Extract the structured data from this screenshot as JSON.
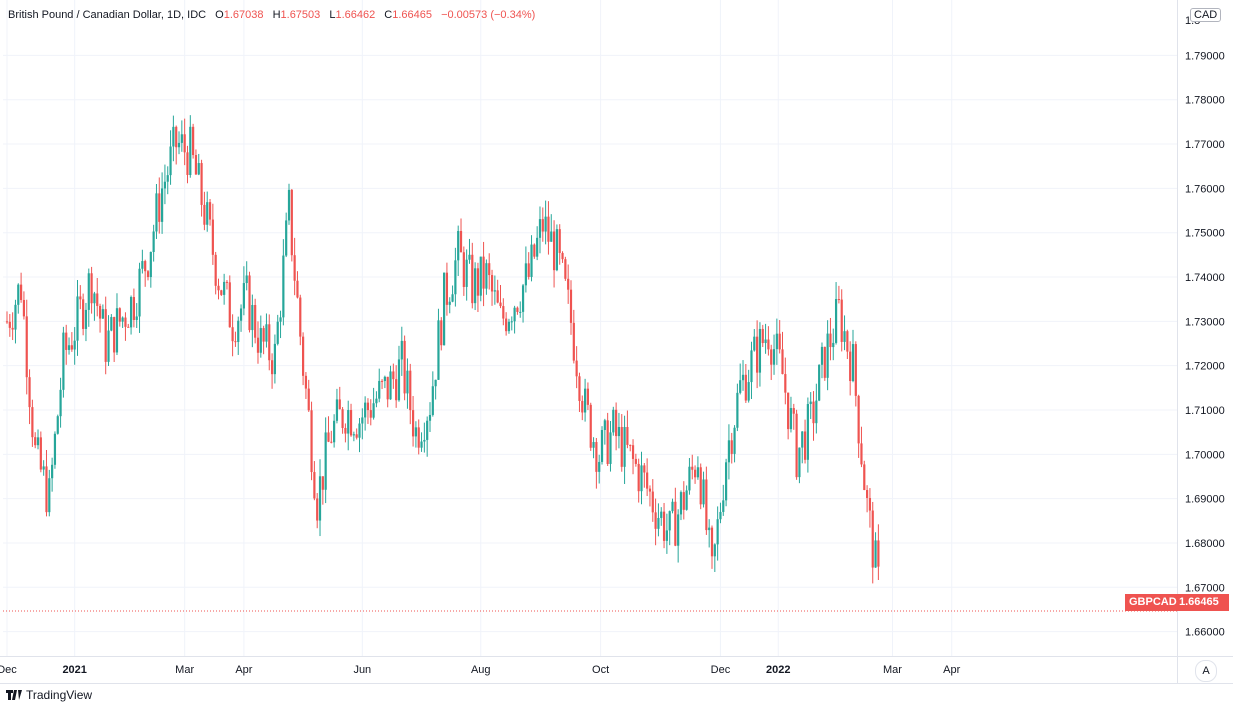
{
  "legend": {
    "symbol": "British Pound / Canadian Dollar, 1D, IDC",
    "o_label": "O",
    "o_value": "1.67038",
    "h_label": "H",
    "h_value": "1.67503",
    "l_label": "L",
    "l_value": "1.66462",
    "c_label": "C",
    "c_value": "1.66465",
    "change": "−0.00573 (−0.34%)"
  },
  "currency_button": "CAD",
  "auto_button": "A",
  "last_price": {
    "label": "GBPCAD",
    "value": "1.66465"
  },
  "branding": "TradingView",
  "colors": {
    "up": "#26a69a",
    "down": "#ef5350",
    "grid": "#f0f3fa",
    "text": "#131722"
  },
  "chart_data": {
    "type": "candlestick",
    "ylim": [
      1.6545,
      1.8025
    ],
    "yticks": [
      "1.66000",
      "1.67000",
      "1.68000",
      "1.69000",
      "1.70000",
      "1.71000",
      "1.72000",
      "1.73000",
      "1.74000",
      "1.75000",
      "1.76000",
      "1.77000",
      "1.78000",
      "1.79000"
    ],
    "top_tick_partial": "1.8",
    "xticks": [
      {
        "label": "Dec",
        "week": 0
      },
      {
        "label": "2021",
        "week": 4.8
      },
      {
        "label": "Mar",
        "week": 12.6
      },
      {
        "label": "Apr",
        "week": 16.8
      },
      {
        "label": "Jun",
        "week": 25.2
      },
      {
        "label": "Aug",
        "week": 33.6
      },
      {
        "label": "Oct",
        "week": 42.1
      },
      {
        "label": "Dec",
        "week": 50.6
      },
      {
        "label": "2022",
        "week": 54.7
      },
      {
        "label": "Mar",
        "week": 62.8
      },
      {
        "label": "Apr",
        "week": 67.0
      }
    ],
    "closes": [
      1.73,
      1.738,
      1.7,
      1.69,
      1.722,
      1.73,
      1.74,
      1.725,
      1.73,
      1.735,
      1.745,
      1.76,
      1.77,
      1.768,
      1.755,
      1.74,
      1.73,
      1.735,
      1.725,
      1.722,
      1.755,
      1.72,
      1.69,
      1.705,
      1.71,
      1.708,
      1.712,
      1.715,
      1.72,
      1.705,
      1.712,
      1.735,
      1.745,
      1.738,
      1.74,
      1.73,
      1.735,
      1.74,
      1.752,
      1.745,
      1.73,
      1.71,
      1.7,
      1.705,
      1.7,
      1.695,
      1.688,
      1.682,
      1.69,
      1.7,
      1.672,
      1.7,
      1.715,
      1.722,
      1.728,
      1.718,
      1.7,
      1.707,
      1.722,
      1.732,
      1.72,
      1.688,
      1.666
    ]
  }
}
